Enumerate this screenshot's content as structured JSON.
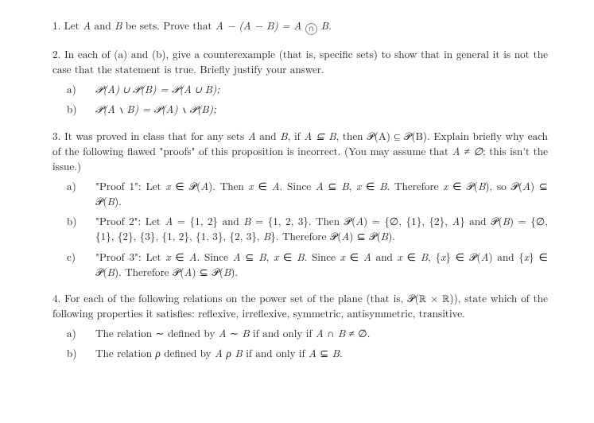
{
  "p1": {
    "text_a": "1. Let ",
    "A": "A",
    "text_b": " and ",
    "B": "B",
    "text_c": " be sets. Prove that ",
    "eq": "A − (A − B) = A ∩ B.",
    "cap_ann": "∩"
  },
  "p2": {
    "intro": "2.  In each of (a) and (b), give a counterexample (that is, specific sets) to show that in general it is not the case that the statement is true. Briefly justify your answer.",
    "a_label": "a)",
    "a_eq": "𝒫(A) ∪ 𝒫(B) = 𝒫(A ∪ B);",
    "b_label": "b)",
    "b_eq": "𝒫(A ∖ B) = 𝒫(A) ∖ 𝒫(B);"
  },
  "p3": {
    "intro_a": "3. It was proved in class that for any sets ",
    "intro_b": " and ",
    "intro_c": ", if ",
    "intro_d": "A ⊆ B",
    "intro_e": ", then 𝒫(A) ⊆ 𝒫(B). Explain briefly why each of the following flawed \"proofs\" of this proposition is incorrect. (You may assume that ",
    "intro_f": "A ≠ ∅",
    "intro_g": "; this isn't the issue.)",
    "a_label": "a)",
    "a_text": "\"Proof 1\": Let x ∈ 𝒫(A). Then x ∈ A. Since A ⊆ B, x ∈ B. Therefore x ∈ 𝒫(B), so 𝒫(A) ⊆ 𝒫(B).",
    "b_label": "b)",
    "b_text": "\"Proof 2\": Let A = {1, 2} and B = {1, 2, 3}. Then 𝒫(A) = {∅, {1}, {2}, A} and 𝒫(B) = {∅, {1}, {2}, {3}, {1, 2}, {1, 3}, {2, 3}, B}. Therefore 𝒫(A) ⊆ 𝒫(B).",
    "c_label": "c)",
    "c_text": "\"Proof 3\": Let x ∈ A. Since A ⊆ B, x ∈ B. Since x ∈ A and x ∈ B, {x} ∈ 𝒫(A) and {x} ∈ 𝒫(B). Therefore 𝒫(A) ⊆ 𝒫(B)."
  },
  "p4": {
    "intro": "4. For each of the following relations on the power set of the plane (that is, 𝒫(ℝ × ℝ)), state which of the following properties it satisfies: reflexive, irreflexive, symmetric, antisymmetric, transitive.",
    "a_label": "a)",
    "a_text": "The relation ∼ defined by A ∼ B if and only if A ∩ B ≠ ∅.",
    "b_label": "b)",
    "b_text": "The relation ρ defined by A ρ B if and only if A ⊆ B."
  }
}
